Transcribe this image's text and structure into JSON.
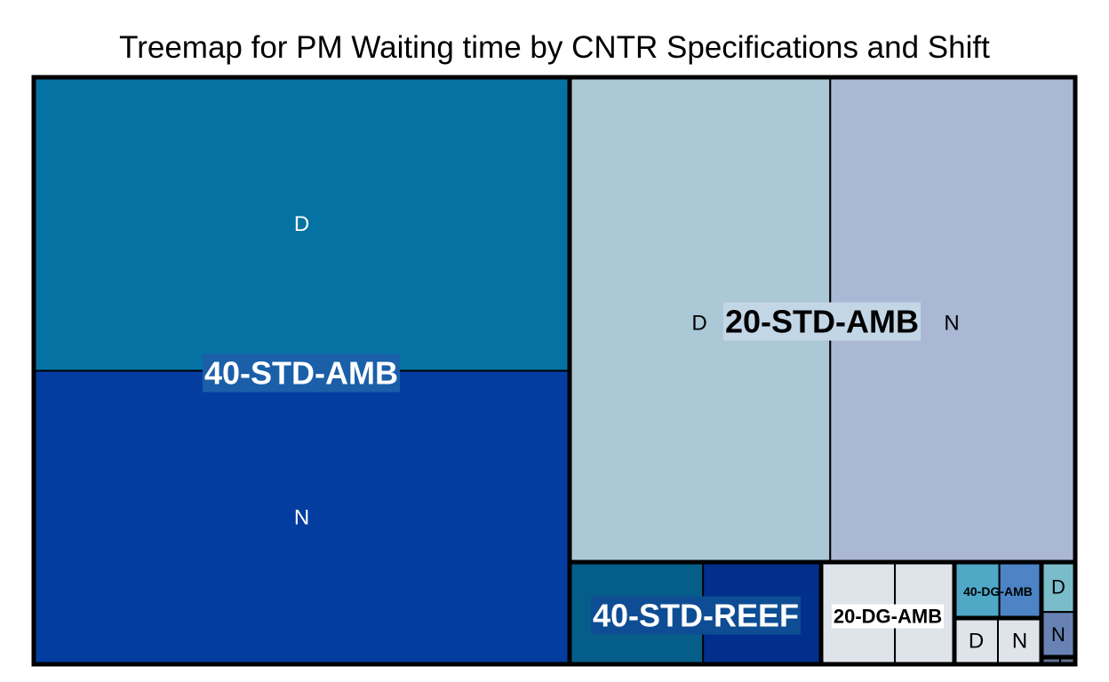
{
  "chart_data": {
    "type": "treemap",
    "title": "Treemap for PM Waiting time by CNTR Specifications and Shift",
    "groups": [
      {
        "name": "40-STD-AMB",
        "label_color": "#ffffff",
        "label_bg": "#1a5fa8",
        "label_size": "large",
        "children": [
          {
            "name": "D",
            "value": 19.8,
            "color": "#0473a3",
            "text_color": "#ffffff"
          },
          {
            "name": "N",
            "value": 19.8,
            "color": "#043da0",
            "text_color": "#ffffff"
          }
        ]
      },
      {
        "name": "20-STD-AMB",
        "label_color": "#000000",
        "label_bg": "#c3d6e6",
        "label_size": "large",
        "children": [
          {
            "name": "D",
            "value": 16.7,
            "color": "#abc8d7",
            "text_color": "#000000"
          },
          {
            "name": "N",
            "value": 15.7,
            "color": "#aab8d5",
            "text_color": "#000000"
          }
        ]
      },
      {
        "name": "40-STD-REEF",
        "label_color": "#ffffff",
        "label_bg": "#0e4d94",
        "label_size": "large",
        "children": [
          {
            "name": "",
            "value": 3.45,
            "color": "#055e8a"
          },
          {
            "name": "",
            "value": 3.05,
            "color": "#032f8c"
          }
        ]
      },
      {
        "name": "20-DG-AMB",
        "label_color": "#000000",
        "label_bg": "#ffffff",
        "label_size": "medium",
        "children": [
          {
            "name": "",
            "value": 1.8,
            "color": "#dfe3ea"
          },
          {
            "name": "",
            "value": 1.45,
            "color": "#dfe3ea"
          }
        ]
      },
      {
        "name": "40-DG-AMB",
        "label_color": "#000000",
        "label_bg": "",
        "label_size": "small",
        "children": [
          {
            "name": "",
            "value": 0.93,
            "color": "#4ea8c6"
          },
          {
            "name": "",
            "value": 0.87,
            "color": "#4c84c6"
          }
        ]
      },
      {
        "name": "",
        "label_color": "#000000",
        "label_bg": "",
        "label_size": "small",
        "children": [
          {
            "name": "D",
            "value": 0.72,
            "color": "#dfe3ea",
            "text_color": "#000000"
          },
          {
            "name": "N",
            "value": 0.72,
            "color": "#dfe3ea",
            "text_color": "#000000"
          }
        ]
      },
      {
        "name": "",
        "label_color": "#000000",
        "label_bg": "",
        "label_size": "small",
        "children": [
          {
            "name": "D",
            "value": 0.42,
            "color": "#7bbccb",
            "text_color": "#000000"
          },
          {
            "name": "N",
            "value": 0.38,
            "color": "#6882b4",
            "text_color": "#000000"
          }
        ]
      },
      {
        "name": "",
        "label_color": "#000000",
        "label_bg": "",
        "label_size": "small",
        "children": [
          {
            "name": "",
            "value": 0.05,
            "color": "#607090"
          },
          {
            "name": "",
            "value": 0.04,
            "color": "#607090"
          }
        ]
      }
    ],
    "border_color": "#000000"
  }
}
